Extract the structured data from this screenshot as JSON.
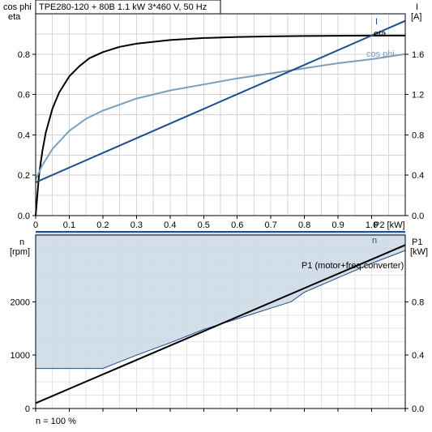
{
  "colors": {
    "eta": "#000000",
    "cosphi": "#7a9fbd",
    "current": "#1f4e8c",
    "speed": "#1f4e8c",
    "p1": "#000000",
    "band_fill": "#d2dfeb",
    "grid": "#d4d4d4"
  },
  "chart_data": [
    {
      "type": "line",
      "title": "TPE280-120 + 80B   1.1 kW   3*460 V, 50 Hz",
      "xlabel": "P2 [kW]",
      "ylabel_left": [
        "cos phi",
        "eta"
      ],
      "ylabel_right": [
        "I",
        "[A]"
      ],
      "xlim": [
        0,
        1.1
      ],
      "ylim_left": [
        0,
        1.0
      ],
      "ylim_right": [
        0,
        2.0
      ],
      "grid": true,
      "x_ticks": [
        "0",
        "0.1",
        "0.2",
        "0.3",
        "0.4",
        "0.5",
        "0.6",
        "0.7",
        "0.8",
        "0.9",
        "1.0"
      ],
      "y_ticks_left": [
        "0.0",
        "0.2",
        "0.4",
        "0.6",
        "0.8"
      ],
      "y_ticks_right": [
        "0.0",
        "0.4",
        "0.8",
        "1.2",
        "1.6"
      ],
      "series": [
        {
          "name": "eta",
          "axis": "left",
          "x": [
            0,
            0.01,
            0.02,
            0.03,
            0.05,
            0.07,
            0.1,
            0.13,
            0.16,
            0.2,
            0.25,
            0.3,
            0.4,
            0.5,
            0.6,
            0.7,
            0.8,
            0.9,
            1.0,
            1.1
          ],
          "y": [
            0.0,
            0.2,
            0.32,
            0.41,
            0.53,
            0.61,
            0.69,
            0.74,
            0.78,
            0.81,
            0.836,
            0.852,
            0.87,
            0.88,
            0.885,
            0.888,
            0.89,
            0.891,
            0.892,
            0.892
          ]
        },
        {
          "name": "cos phi",
          "axis": "left",
          "x": [
            0,
            0.02,
            0.05,
            0.1,
            0.15,
            0.2,
            0.3,
            0.4,
            0.5,
            0.6,
            0.7,
            0.8,
            0.9,
            1.0,
            1.1
          ],
          "y": [
            0.18,
            0.25,
            0.33,
            0.42,
            0.48,
            0.52,
            0.58,
            0.62,
            0.65,
            0.68,
            0.705,
            0.73,
            0.755,
            0.775,
            0.8
          ]
        },
        {
          "name": "I",
          "axis": "right",
          "x": [
            0,
            1.1
          ],
          "y": [
            0.33,
            1.93
          ]
        }
      ],
      "annotations": [
        "I",
        "eta",
        "cos phi"
      ]
    },
    {
      "type": "area",
      "ylabel_left": [
        "n",
        "[rpm]"
      ],
      "ylabel_right": [
        "P1",
        "[kW]"
      ],
      "xlim": [
        0,
        1.1
      ],
      "ylim_left": [
        0,
        3250
      ],
      "ylim_right": [
        0,
        1.3
      ],
      "grid": true,
      "y_ticks_left": [
        "0",
        "1000",
        "2000"
      ],
      "y_ticks_right": [
        "0.0",
        "0.4",
        "0.8"
      ],
      "series": [
        {
          "name": "n",
          "axis": "left",
          "kind": "line",
          "x": [
            0,
            1.1
          ],
          "y": [
            3310,
            3310
          ]
        },
        {
          "name": "n min",
          "axis": "left",
          "kind": "band_lower",
          "x": [
            0,
            0.2,
            0.3,
            0.4,
            0.5,
            0.6,
            0.7,
            0.76,
            0.8,
            0.9,
            1.0,
            1.1
          ],
          "y": [
            750,
            750,
            1000,
            1230,
            1480,
            1680,
            1880,
            2000,
            2180,
            2450,
            2720,
            2960
          ]
        },
        {
          "name": "P1 (motor+freq.converter)",
          "axis": "right",
          "kind": "line",
          "x": [
            0,
            1.1
          ],
          "y": [
            0.04,
            1.225
          ]
        }
      ],
      "annotations": [
        "n",
        "P1 (motor+freq.converter)"
      ],
      "footer": "n = 100 %"
    }
  ]
}
